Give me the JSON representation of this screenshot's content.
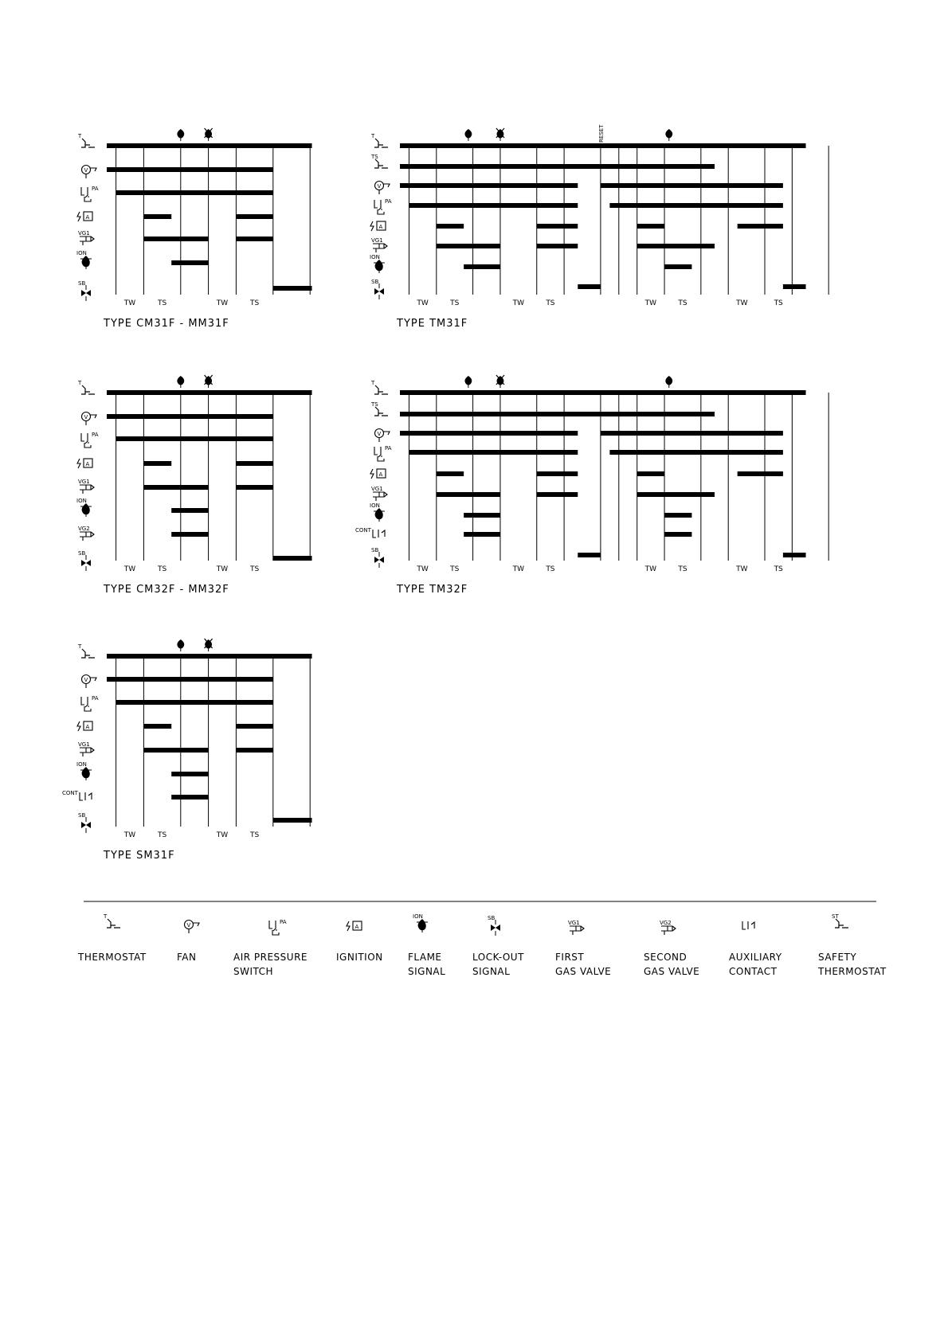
{
  "diagrams": [
    {
      "id": "cm31",
      "title": "TYPE CM31F - MM31F",
      "reset": "",
      "phases": [
        "TW",
        "TS",
        "TW",
        "TS"
      ]
    },
    {
      "id": "tm31",
      "title": "TYPE TM31F",
      "reset": "RESET",
      "phases": [
        "TW",
        "TS",
        "TW",
        "TS",
        "TW",
        "TS",
        "TW",
        "TS"
      ]
    },
    {
      "id": "cm32",
      "title": "TYPE CM32F - MM32F",
      "reset": "",
      "phases": [
        "TW",
        "TS",
        "TW",
        "TS"
      ]
    },
    {
      "id": "tm32",
      "title": "TYPE TM32F",
      "reset": "",
      "phases": [
        "TW",
        "TS",
        "TW",
        "TS",
        "TW",
        "TS",
        "TW",
        "TS"
      ]
    },
    {
      "id": "sm31",
      "title": "TYPE SM31F",
      "reset": "",
      "phases": [
        "TW",
        "TS",
        "TW",
        "TS"
      ]
    }
  ],
  "symbol_tags": {
    "ts": "TS",
    "pa": "PA",
    "vg1": "VG1",
    "vg2": "VG2",
    "ion": "ION",
    "sb": "SB",
    "cont": "CONT",
    "st": "ST",
    "t": "T",
    "a": "A",
    "v": "V"
  },
  "legend": [
    {
      "icon": "thermostat",
      "line1": "THERMOSTAT",
      "line2": ""
    },
    {
      "icon": "fan",
      "line1": "FAN",
      "line2": ""
    },
    {
      "icon": "air-pressure-switch",
      "line1": "AIR PRESSURE",
      "line2": "SWITCH"
    },
    {
      "icon": "ignition",
      "line1": "IGNITION",
      "line2": ""
    },
    {
      "icon": "flame-signal",
      "line1": "FLAME",
      "line2": "SIGNAL"
    },
    {
      "icon": "lock-out-signal",
      "line1": "LOCK-OUT",
      "line2": "SIGNAL"
    },
    {
      "icon": "first-gas-valve",
      "line1": "FIRST",
      "line2": "GAS VALVE"
    },
    {
      "icon": "second-gas-valve",
      "line1": "SECOND",
      "line2": "GAS VALVE"
    },
    {
      "icon": "auxiliary-contact",
      "line1": "AUXILIARY",
      "line2": "CONTACT"
    },
    {
      "icon": "safety-thermostat",
      "line1": "SAFETY",
      "line2": "THERMOSTAT"
    }
  ]
}
